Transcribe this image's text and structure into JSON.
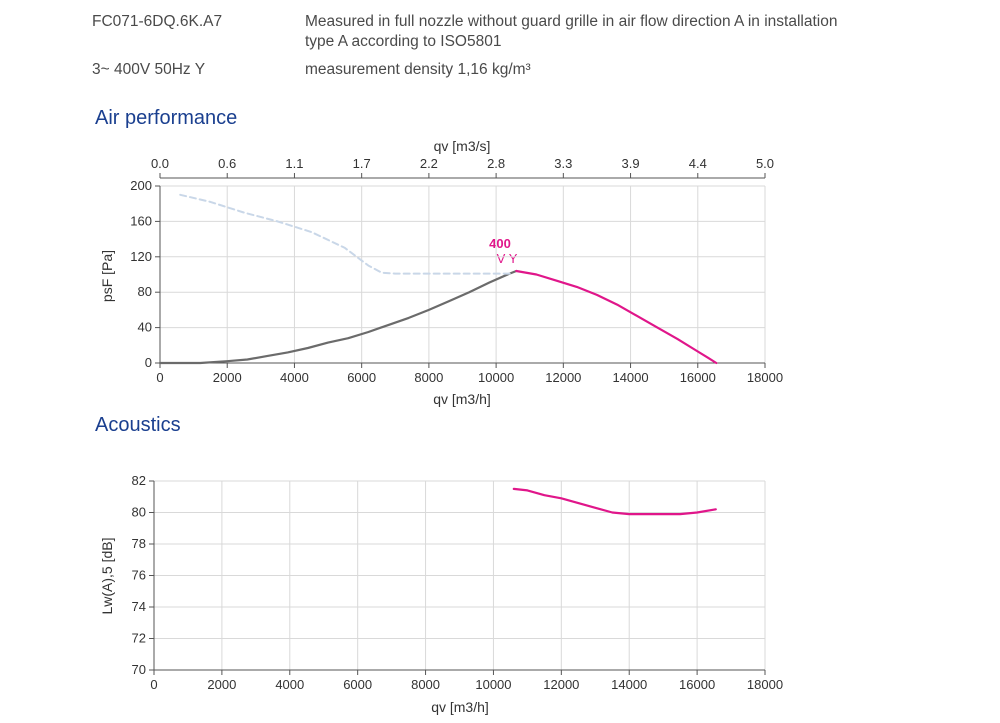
{
  "header": {
    "model": "FC071-6DQ.6K.A7",
    "measure_line1": "Measured in full nozzle without guard grille in air flow direction A in installation",
    "measure_line2": "type A according to ISO5801",
    "voltage": "3~ 400V 50Hz Y",
    "density": "measurement density 1,16 kg/m³"
  },
  "sections": {
    "air": "Air performance",
    "acoustics": "Acoustics"
  },
  "colors": {
    "magenta": "#e0168a",
    "grey": "#6b6b6b",
    "dashed": "#c9d7e8",
    "grid": "#d9d9d9"
  },
  "chart_data": [
    {
      "type": "line",
      "title": "",
      "xlabel": "qv [m3/h]",
      "x2label": "qv [m3/s]",
      "ylabel": "psF [Pa]",
      "xlim": [
        0,
        18000
      ],
      "ylim": [
        0,
        200
      ],
      "xticks": [
        0,
        2000,
        4000,
        6000,
        8000,
        10000,
        12000,
        14000,
        16000,
        18000
      ],
      "yticks": [
        0,
        40,
        80,
        120,
        160,
        200
      ],
      "x2ticks": [
        "0.0",
        "0.6",
        "1.1",
        "1.7",
        "2.2",
        "2.8",
        "3.3",
        "3.9",
        "4.4",
        "5.0"
      ],
      "grid": true,
      "label_line1": "400",
      "label_line2": "V Y",
      "series": [
        {
          "style": "solid-grey",
          "x": [
            0,
            1200,
            2000,
            2600,
            3200,
            3800,
            4400,
            5000,
            5600,
            6200,
            6800,
            7400,
            8000,
            8600,
            9200,
            9800,
            10400,
            10600
          ],
          "y": [
            0,
            0,
            2,
            4,
            8,
            12,
            17,
            23,
            28,
            35,
            43,
            51,
            60,
            70,
            80,
            91,
            101,
            104
          ]
        },
        {
          "style": "solid-magenta",
          "x": [
            10600,
            11200,
            11800,
            12400,
            13000,
            13600,
            14200,
            14800,
            15400,
            16000,
            16300,
            16550
          ],
          "y": [
            104,
            100,
            93,
            86,
            77,
            66,
            53,
            40,
            27,
            13,
            6,
            0
          ]
        },
        {
          "style": "dashed",
          "x": [
            600,
            1500,
            2500,
            3500,
            4500,
            5500,
            6200,
            6600,
            7000,
            8000,
            9000,
            10000,
            10500
          ],
          "y": [
            190,
            182,
            170,
            160,
            148,
            130,
            110,
            102,
            101,
            101,
            101,
            101,
            101
          ]
        }
      ]
    },
    {
      "type": "line",
      "title": "",
      "xlabel": "qv [m3/h]",
      "ylabel": "Lw(A),5 [dB]",
      "xlim": [
        0,
        18000
      ],
      "ylim": [
        70,
        82
      ],
      "xticks": [
        0,
        2000,
        4000,
        6000,
        8000,
        10000,
        12000,
        14000,
        16000,
        18000
      ],
      "yticks": [
        70,
        72,
        74,
        76,
        78,
        80,
        82
      ],
      "grid": true,
      "series": [
        {
          "style": "solid-magenta",
          "x": [
            10600,
            11000,
            11500,
            12000,
            12500,
            13000,
            13500,
            14000,
            14500,
            15000,
            15500,
            16000,
            16550
          ],
          "y": [
            81.5,
            81.4,
            81.1,
            80.9,
            80.6,
            80.3,
            80.0,
            79.9,
            79.9,
            79.9,
            79.9,
            80.0,
            80.2
          ]
        }
      ]
    }
  ]
}
